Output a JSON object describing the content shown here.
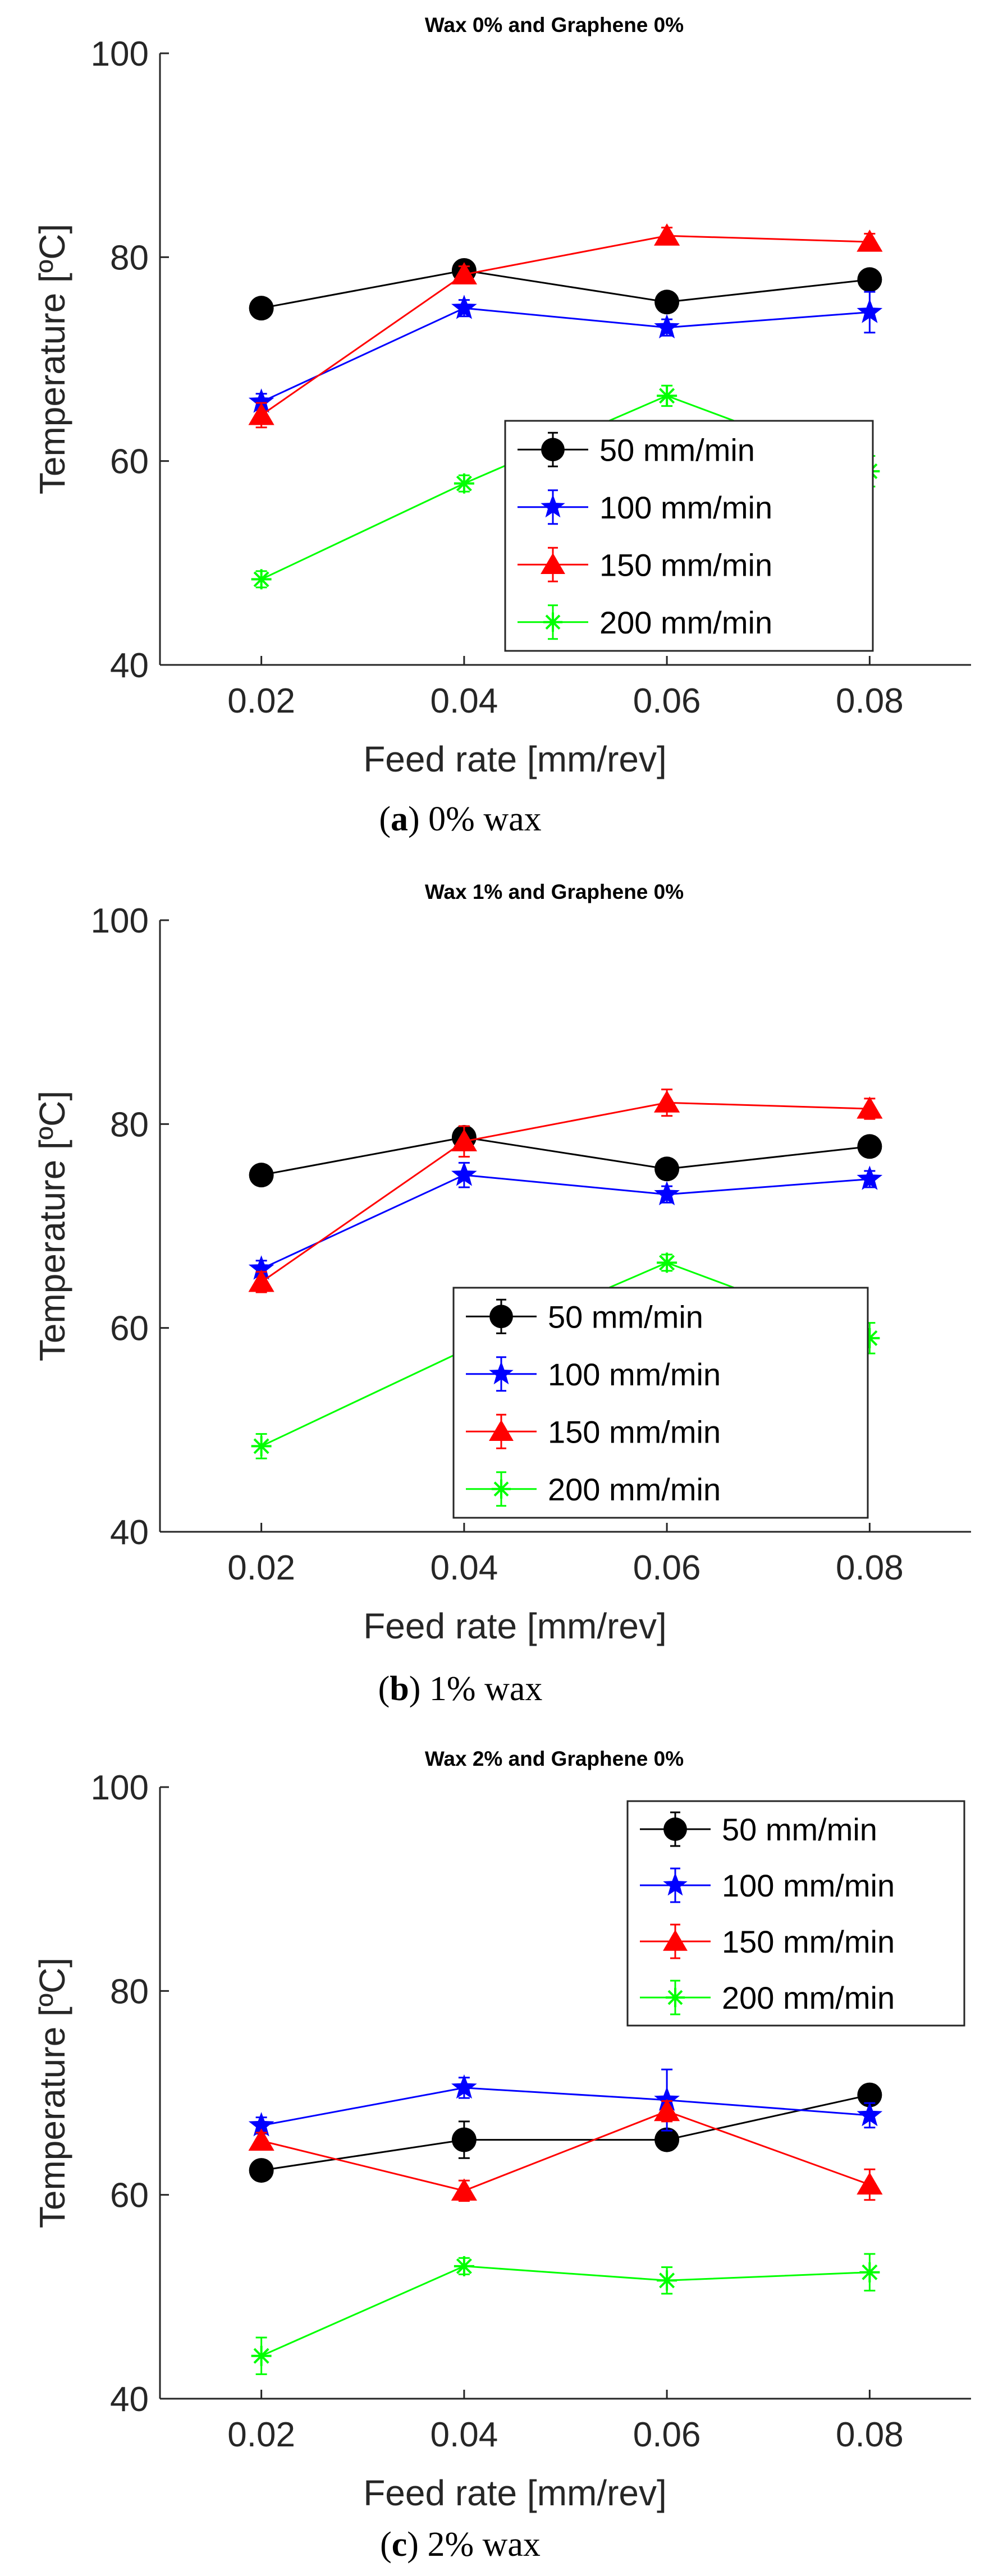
{
  "chart_data": [
    {
      "type": "line",
      "title": "Wax 0% and Graphene 0%",
      "xlabel": "Feed rate [mm/rev]",
      "ylabel": "Temperature [ºC]",
      "x": [
        0.02,
        0.04,
        0.06,
        0.08
      ],
      "x_ticks": [
        "0.02",
        "0.04",
        "0.06",
        "0.08"
      ],
      "xlim": [
        0.01,
        0.09
      ],
      "y_ticks": [
        "40",
        "60",
        "80",
        "100"
      ],
      "ylim": [
        40,
        100
      ],
      "legend_position": "lower-right",
      "caption_letter": "a",
      "caption_text": " 0% wax",
      "series": [
        {
          "name": "50 mm/min",
          "color": "#000000",
          "marker": "circle",
          "values": [
            75.0,
            78.7,
            75.6,
            77.8
          ],
          "errors": [
            0.7,
            1.0,
            1.0,
            1.0
          ]
        },
        {
          "name": "100 mm/min",
          "color": "#0000ff",
          "marker": "star",
          "values": [
            65.8,
            75.0,
            73.1,
            74.6
          ],
          "errors": [
            0.8,
            0.8,
            0.8,
            2.0
          ]
        },
        {
          "name": "150 mm/min",
          "color": "#ff0000",
          "marker": "triangle",
          "values": [
            64.5,
            78.3,
            82.1,
            81.5
          ],
          "errors": [
            1.2,
            0.8,
            0.8,
            0.8
          ]
        },
        {
          "name": "200 mm/min",
          "color": "#00ff00",
          "marker": "asterisk",
          "values": [
            48.4,
            57.8,
            66.4,
            59.0
          ],
          "errors": [
            0.8,
            0.8,
            1.0,
            1.5
          ]
        }
      ]
    },
    {
      "type": "line",
      "title": "Wax 1% and Graphene 0%",
      "xlabel": "Feed rate [mm/rev]",
      "ylabel": "Temperature [ºC]",
      "x": [
        0.02,
        0.04,
        0.06,
        0.08
      ],
      "x_ticks": [
        "0.02",
        "0.04",
        "0.06",
        "0.08"
      ],
      "xlim": [
        0.01,
        0.09
      ],
      "y_ticks": [
        "40",
        "60",
        "80",
        "100"
      ],
      "ylim": [
        40,
        100
      ],
      "legend_position": "lower-right",
      "caption_letter": "b",
      "caption_text": " 1% wax",
      "series": [
        {
          "name": "50 mm/min",
          "color": "#000000",
          "marker": "circle",
          "values": [
            75.0,
            78.7,
            75.6,
            77.8
          ],
          "errors": [
            0.7,
            1.0,
            1.0,
            1.0
          ]
        },
        {
          "name": "100 mm/min",
          "color": "#0000ff",
          "marker": "star",
          "values": [
            65.8,
            75.0,
            73.1,
            74.6
          ],
          "errors": [
            0.8,
            1.2,
            0.8,
            0.8
          ]
        },
        {
          "name": "150 mm/min",
          "color": "#ff0000",
          "marker": "triangle",
          "values": [
            64.5,
            78.3,
            82.1,
            81.5
          ],
          "errors": [
            1.0,
            1.5,
            1.3,
            1.0
          ]
        },
        {
          "name": "200 mm/min",
          "color": "#00ff00",
          "marker": "asterisk",
          "values": [
            48.4,
            57.8,
            66.4,
            59.0
          ],
          "errors": [
            1.2,
            1.2,
            0.8,
            1.5
          ]
        }
      ]
    },
    {
      "type": "line",
      "title": "Wax 2% and Graphene 0%",
      "xlabel": "Feed rate [mm/rev]",
      "ylabel": "Temperature [ºC]",
      "x": [
        0.02,
        0.04,
        0.06,
        0.08
      ],
      "x_ticks": [
        "0.02",
        "0.04",
        "0.06",
        "0.08"
      ],
      "xlim": [
        0.01,
        0.09
      ],
      "y_ticks": [
        "40",
        "60",
        "80",
        "100"
      ],
      "ylim": [
        40,
        100
      ],
      "legend_position": "upper-right",
      "caption_letter": "c",
      "caption_text": " 2% wax",
      "series": [
        {
          "name": "50 mm/min",
          "color": "#000000",
          "marker": "circle",
          "values": [
            62.4,
            65.4,
            65.4,
            69.8
          ],
          "errors": [
            0.8,
            1.8,
            1.0,
            1.0
          ]
        },
        {
          "name": "100 mm/min",
          "color": "#0000ff",
          "marker": "star",
          "values": [
            66.8,
            70.5,
            69.3,
            67.8
          ],
          "errors": [
            0.8,
            1.0,
            3.0,
            1.2
          ]
        },
        {
          "name": "150 mm/min",
          "color": "#ff0000",
          "marker": "triangle",
          "values": [
            65.3,
            60.4,
            68.2,
            61.0
          ],
          "errors": [
            0.8,
            1.0,
            1.0,
            1.5
          ]
        },
        {
          "name": "200 mm/min",
          "color": "#00ff00",
          "marker": "asterisk",
          "values": [
            44.2,
            53.0,
            51.6,
            52.4
          ],
          "errors": [
            1.8,
            0.8,
            1.3,
            1.8
          ]
        }
      ]
    }
  ]
}
